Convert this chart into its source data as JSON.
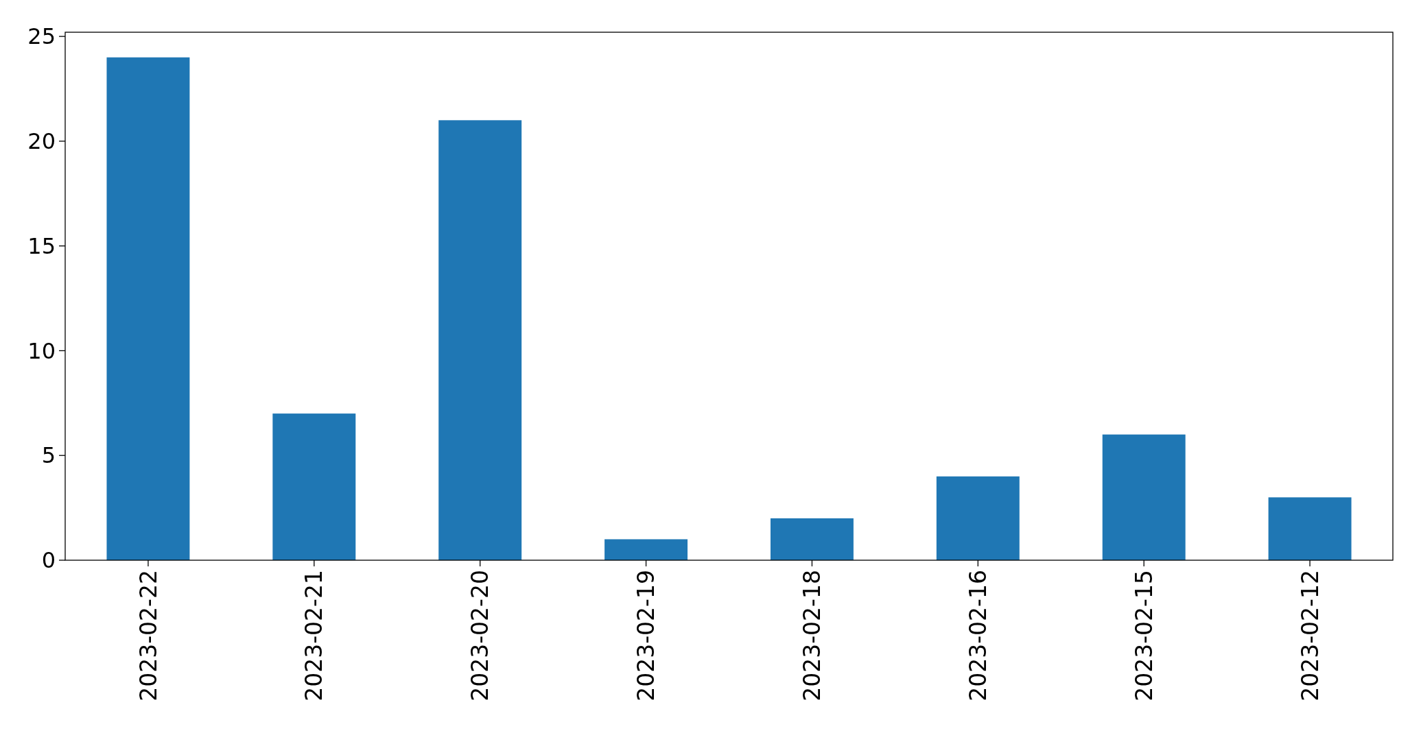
{
  "chart_data": {
    "type": "bar",
    "categories": [
      "2023-02-22",
      "2023-02-21",
      "2023-02-20",
      "2023-02-19",
      "2023-02-18",
      "2023-02-16",
      "2023-02-15",
      "2023-02-12"
    ],
    "values": [
      24,
      7,
      21,
      1,
      2,
      4,
      6,
      3
    ],
    "color": "#1f77b4",
    "ylim": [
      0,
      25.2
    ],
    "yticks": [
      0,
      5,
      10,
      15,
      20,
      25
    ],
    "grid": false
  }
}
